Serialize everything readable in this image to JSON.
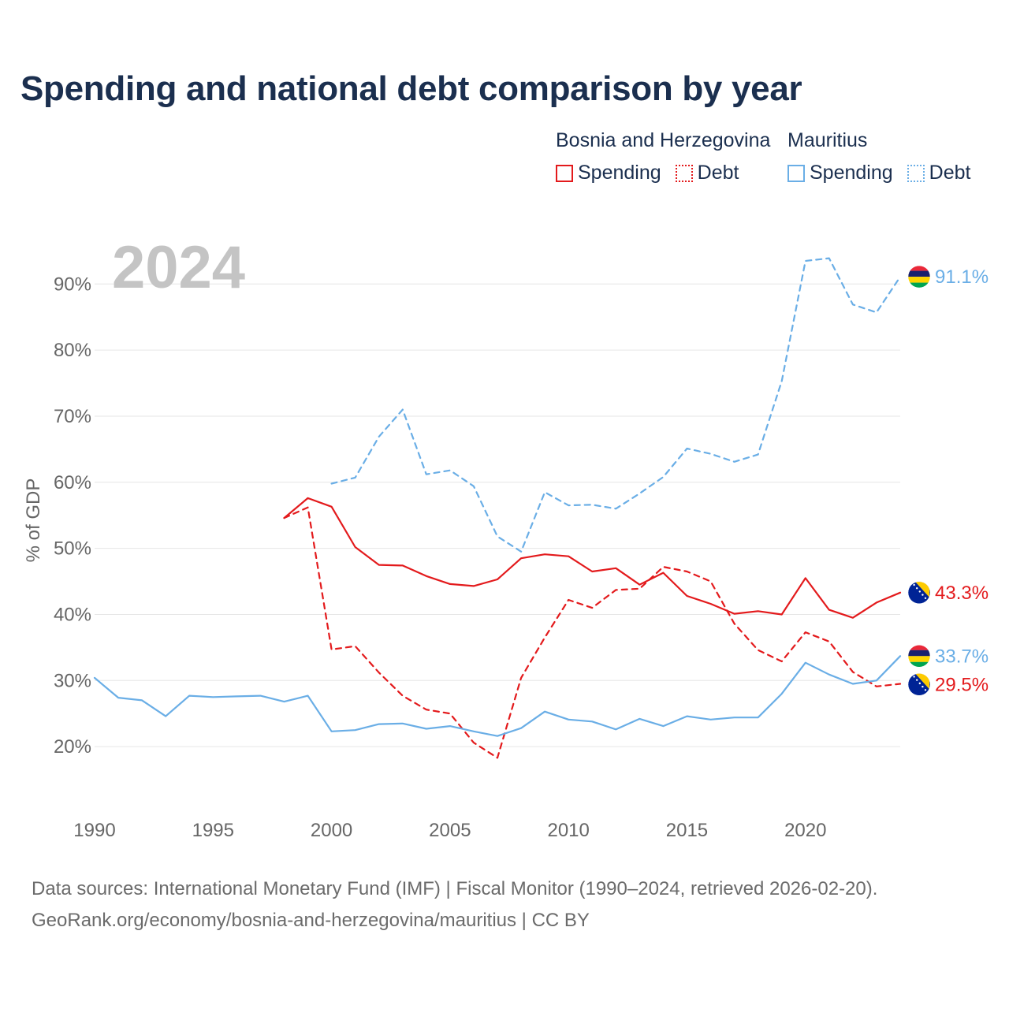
{
  "chart_data": {
    "type": "line",
    "title": "Spending and national debt comparison by year",
    "ylabel": "% of GDP",
    "xlabel": "",
    "year_label": "2024",
    "xlim": [
      1990,
      2024
    ],
    "ylim": [
      12.5,
      96
    ],
    "x_ticks": [
      "1990",
      "1995",
      "2000",
      "2005",
      "2010",
      "2015",
      "2020"
    ],
    "y_ticks": [
      "20%",
      "30%",
      "40%",
      "50%",
      "60%",
      "70%",
      "80%",
      "90%"
    ],
    "y_tick_values": [
      20,
      30,
      40,
      50,
      60,
      70,
      80,
      90
    ],
    "legend": {
      "groups": [
        "Bosnia and Herzegovina",
        "Mauritius"
      ],
      "spending_label": "Spending",
      "debt_label": "Debt"
    },
    "colors": {
      "bih": "#e31a1c",
      "mauritius": "#6aaee6"
    },
    "series": [
      {
        "name": "Bosnia and Herzegovina Spending",
        "country": "bih",
        "dash": false,
        "end_label": "43.3%",
        "x": [
          1998,
          1999,
          2000,
          2001,
          2002,
          2003,
          2004,
          2005,
          2006,
          2007,
          2008,
          2009,
          2010,
          2011,
          2012,
          2013,
          2014,
          2015,
          2016,
          2017,
          2018,
          2019,
          2020,
          2021,
          2022,
          2023,
          2024
        ],
        "values": [
          54.6,
          57.6,
          56.3,
          50.2,
          47.5,
          47.4,
          45.8,
          44.6,
          44.3,
          45.3,
          48.5,
          49.1,
          48.8,
          46.5,
          47.0,
          44.5,
          46.3,
          42.8,
          41.6,
          40.1,
          40.5,
          40.0,
          45.5,
          40.7,
          39.5,
          41.8,
          43.3
        ]
      },
      {
        "name": "Bosnia and Herzegovina Debt",
        "country": "bih",
        "dash": true,
        "end_label": "29.5%",
        "x": [
          1998,
          1999,
          2000,
          2001,
          2002,
          2003,
          2004,
          2005,
          2006,
          2007,
          2008,
          2009,
          2010,
          2011,
          2012,
          2013,
          2014,
          2015,
          2016,
          2017,
          2018,
          2019,
          2020,
          2021,
          2022,
          2023,
          2024
        ],
        "values": [
          54.6,
          56.2,
          34.7,
          35.2,
          31.2,
          27.7,
          25.6,
          25.0,
          20.6,
          18.3,
          30.4,
          36.5,
          42.2,
          41.0,
          43.7,
          43.9,
          47.2,
          46.5,
          45.0,
          38.6,
          34.6,
          32.9,
          37.3,
          35.9,
          31.3,
          29.1,
          29.5
        ]
      },
      {
        "name": "Mauritius Spending",
        "country": "mauritius",
        "dash": false,
        "end_label": "33.7%",
        "x": [
          1990,
          1991,
          1992,
          1993,
          1994,
          1995,
          1996,
          1997,
          1998,
          1999,
          2000,
          2001,
          2002,
          2003,
          2004,
          2005,
          2006,
          2007,
          2008,
          2009,
          2010,
          2011,
          2012,
          2013,
          2014,
          2015,
          2016,
          2017,
          2018,
          2019,
          2020,
          2021,
          2022,
          2023,
          2024
        ],
        "values": [
          30.4,
          27.4,
          27.0,
          24.6,
          27.7,
          27.5,
          27.6,
          27.7,
          26.8,
          27.7,
          22.3,
          22.5,
          23.4,
          23.5,
          22.7,
          23.1,
          22.3,
          21.6,
          22.8,
          25.3,
          24.1,
          23.8,
          22.6,
          24.2,
          23.1,
          24.6,
          24.1,
          24.4,
          24.4,
          28.0,
          32.7,
          30.9,
          29.5,
          30.0,
          33.7
        ]
      },
      {
        "name": "Mauritius Debt",
        "country": "mauritius",
        "dash": true,
        "end_label": "91.1%",
        "x": [
          2000,
          2001,
          2002,
          2003,
          2004,
          2005,
          2006,
          2007,
          2008,
          2009,
          2010,
          2011,
          2012,
          2013,
          2014,
          2015,
          2016,
          2017,
          2018,
          2019,
          2020,
          2021,
          2022,
          2023,
          2024
        ],
        "values": [
          59.8,
          60.7,
          66.9,
          71.0,
          61.2,
          61.8,
          59.4,
          51.8,
          49.5,
          58.5,
          56.5,
          56.6,
          56.0,
          58.3,
          60.8,
          65.1,
          64.3,
          63.1,
          64.2,
          75.3,
          93.5,
          93.9,
          86.9,
          85.7,
          91.1
        ]
      }
    ]
  },
  "footer": {
    "line1": "Data sources: International Monetary Fund (IMF) | Fiscal Monitor (1990–2024, retrieved 2026-02-20).",
    "line2": "GeoRank.org/economy/bosnia-and-herzegovina/mauritius | CC BY"
  }
}
